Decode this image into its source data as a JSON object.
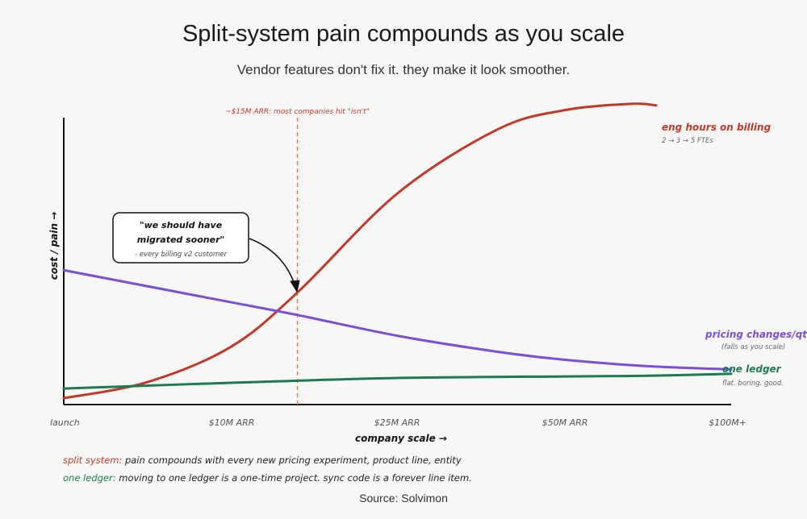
{
  "title": "Split-system pain compounds as you scale",
  "subtitle": "Vendor features don't fix it. they make it look smoother.",
  "source": "Source: Solvimon",
  "notes": {
    "split_key": "split system:",
    "split_text": " pain compounds with every new pricing experiment, product line, entity",
    "ledger_key": "one ledger:",
    "ledger_text": " moving to one ledger is a one-time project. sync code is a forever line item."
  },
  "chart_data": {
    "type": "line",
    "title": "Split-system pain compounds as you scale",
    "xlabel": "company scale →",
    "ylabel": "cost / pain →",
    "x_ticks": [
      "launch",
      "$10M ARR",
      "$25M ARR",
      "$50M ARR",
      "$100M+"
    ],
    "x_domain": [
      0,
      4
    ],
    "ylim": [
      0,
      100
    ],
    "grid": false,
    "series": [
      {
        "name": "eng hours on billing",
        "note": "2 → 3 → 5 FTEs",
        "color": "#c0392b",
        "x": [
          0,
          0.5,
          1.0,
          1.4,
          2.0,
          2.6,
          3.0,
          3.4,
          3.55
        ],
        "y": [
          2,
          7,
          18,
          35,
          66,
          86,
          92,
          94,
          93.5
        ]
      },
      {
        "name": "pricing changes/qtr",
        "note": "(falls as you scale)",
        "color": "#7b4fd6",
        "x": [
          0,
          0.5,
          1.0,
          1.4,
          2.0,
          2.6,
          3.0,
          3.5,
          4.0
        ],
        "y": [
          42,
          37,
          32,
          28,
          21.5,
          16.5,
          14,
          12,
          11
        ]
      },
      {
        "name": "one ledger",
        "note": "flat. boring. good.",
        "color": "#1d7a52",
        "x": [
          0,
          1.0,
          2.0,
          3.0,
          3.5,
          4.0
        ],
        "y": [
          5,
          6.8,
          8.3,
          8.8,
          9,
          9.6
        ]
      }
    ],
    "annotations": {
      "vline_x": 1.4,
      "vline_label": "~$15M ARR: most companies hit \"isn't\"",
      "callout_line1": "\"we should have",
      "callout_line2": "migrated sooner\"",
      "callout_attr": "- every billing v2 customer"
    }
  }
}
